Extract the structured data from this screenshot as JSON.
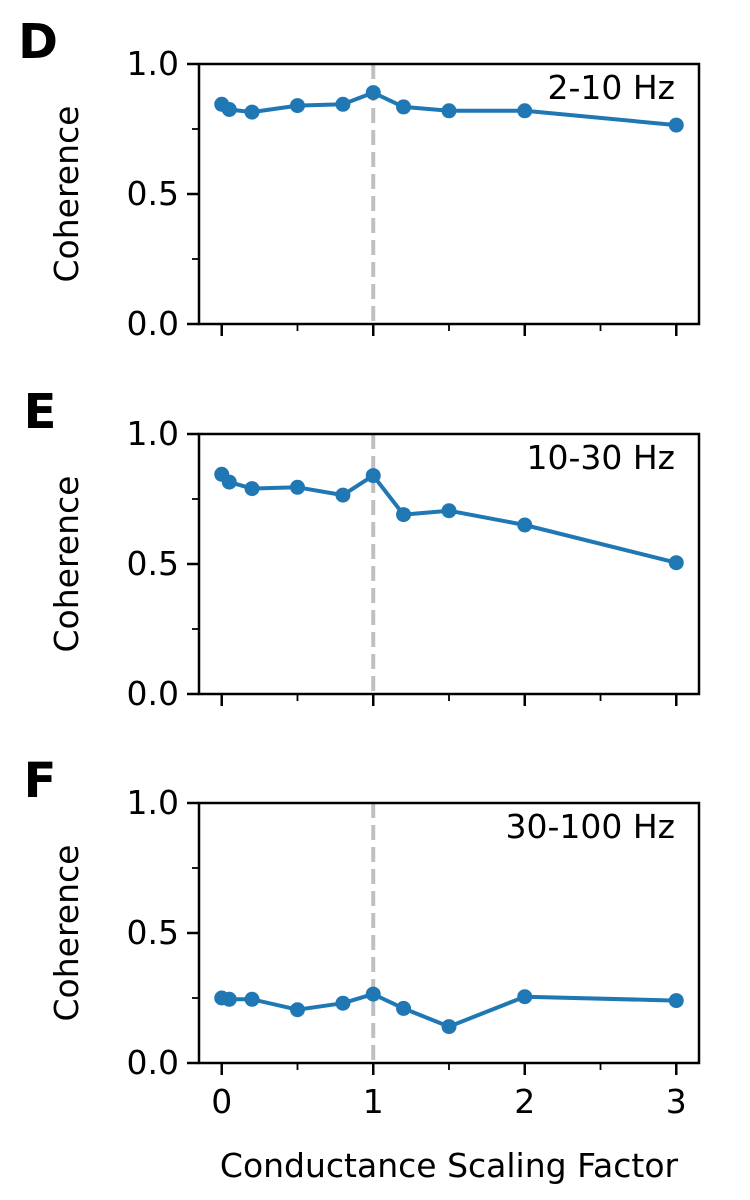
{
  "figure": {
    "xlabel": "Conductance Scaling Factor"
  },
  "chart_data": [
    {
      "type": "line",
      "panel_letter": "D",
      "annotation": "2-10 Hz",
      "ylabel": "Coherence",
      "xlabel": "",
      "xlim": [
        -0.15,
        3.15
      ],
      "ylim": [
        0,
        1.0
      ],
      "yticks": [
        0.0,
        0.5,
        1.0
      ],
      "ytick_labels": [
        "0.0",
        "0.5",
        "1.0"
      ],
      "yminor_ticks": [
        0.25,
        0.75
      ],
      "xticks": [
        0,
        1,
        2,
        3
      ],
      "xtick_labels": [],
      "xminor_ticks": [
        0.5,
        1.5,
        2.5
      ],
      "reference_line": {
        "x": 1,
        "style": "dashed",
        "color": "#c0c0c0"
      },
      "series": [
        {
          "color": "#1f77b4",
          "x": [
            0,
            0.05,
            0.2,
            0.5,
            0.8,
            1.0,
            1.2,
            1.5,
            2.0,
            3.0
          ],
          "y": [
            0.845,
            0.825,
            0.815,
            0.84,
            0.845,
            0.89,
            0.835,
            0.82,
            0.82,
            0.765
          ]
        }
      ],
      "grid": false
    },
    {
      "type": "line",
      "panel_letter": "E",
      "annotation": "10-30 Hz",
      "ylabel": "Coherence",
      "xlabel": "",
      "xlim": [
        -0.15,
        3.15
      ],
      "ylim": [
        0,
        1.0
      ],
      "yticks": [
        0.0,
        0.5,
        1.0
      ],
      "ytick_labels": [
        "0.0",
        "0.5",
        "1.0"
      ],
      "yminor_ticks": [
        0.25,
        0.75
      ],
      "xticks": [
        0,
        1,
        2,
        3
      ],
      "xtick_labels": [],
      "xminor_ticks": [
        0.5,
        1.5,
        2.5
      ],
      "reference_line": {
        "x": 1,
        "style": "dashed",
        "color": "#c0c0c0"
      },
      "series": [
        {
          "color": "#1f77b4",
          "x": [
            0,
            0.05,
            0.2,
            0.5,
            0.8,
            1.0,
            1.2,
            1.5,
            2.0,
            3.0
          ],
          "y": [
            0.845,
            0.815,
            0.79,
            0.795,
            0.765,
            0.84,
            0.69,
            0.705,
            0.65,
            0.505
          ]
        }
      ],
      "grid": false
    },
    {
      "type": "line",
      "panel_letter": "F",
      "annotation": "30-100 Hz",
      "ylabel": "Coherence",
      "xlabel": "Conductance Scaling Factor",
      "xlim": [
        -0.15,
        3.15
      ],
      "ylim": [
        0,
        1.0
      ],
      "yticks": [
        0.0,
        0.5,
        1.0
      ],
      "ytick_labels": [
        "0.0",
        "0.5",
        "1.0"
      ],
      "yminor_ticks": [
        0.25,
        0.75
      ],
      "xticks": [
        0,
        1,
        2,
        3
      ],
      "xtick_labels": [
        "0",
        "1",
        "2",
        "3"
      ],
      "xminor_ticks": [
        0.5,
        1.5,
        2.5
      ],
      "reference_line": {
        "x": 1,
        "style": "dashed",
        "color": "#c0c0c0"
      },
      "series": [
        {
          "color": "#1f77b4",
          "x": [
            0,
            0.05,
            0.2,
            0.5,
            0.8,
            1.0,
            1.2,
            1.5,
            2.0,
            3.0
          ],
          "y": [
            0.25,
            0.245,
            0.245,
            0.205,
            0.23,
            0.265,
            0.21,
            0.14,
            0.255,
            0.24
          ]
        }
      ],
      "grid": false
    }
  ]
}
